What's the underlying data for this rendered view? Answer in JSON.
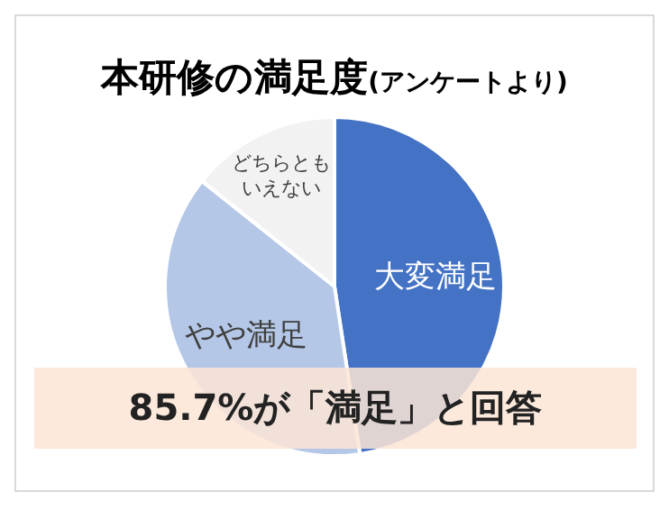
{
  "chart_data": {
    "type": "pie",
    "title": "本研修の満足度",
    "subtitle": "(アンケートより)",
    "categories": [
      "大変満足",
      "やや満足",
      "どちらともいえない"
    ],
    "values": [
      47.6,
      38.1,
      14.3
    ],
    "colors": [
      "#4472c4",
      "#b4c7e7",
      "#f2f2f2"
    ],
    "annotations": [
      "85.7%が「満足」と回答"
    ],
    "legend": false
  }
}
